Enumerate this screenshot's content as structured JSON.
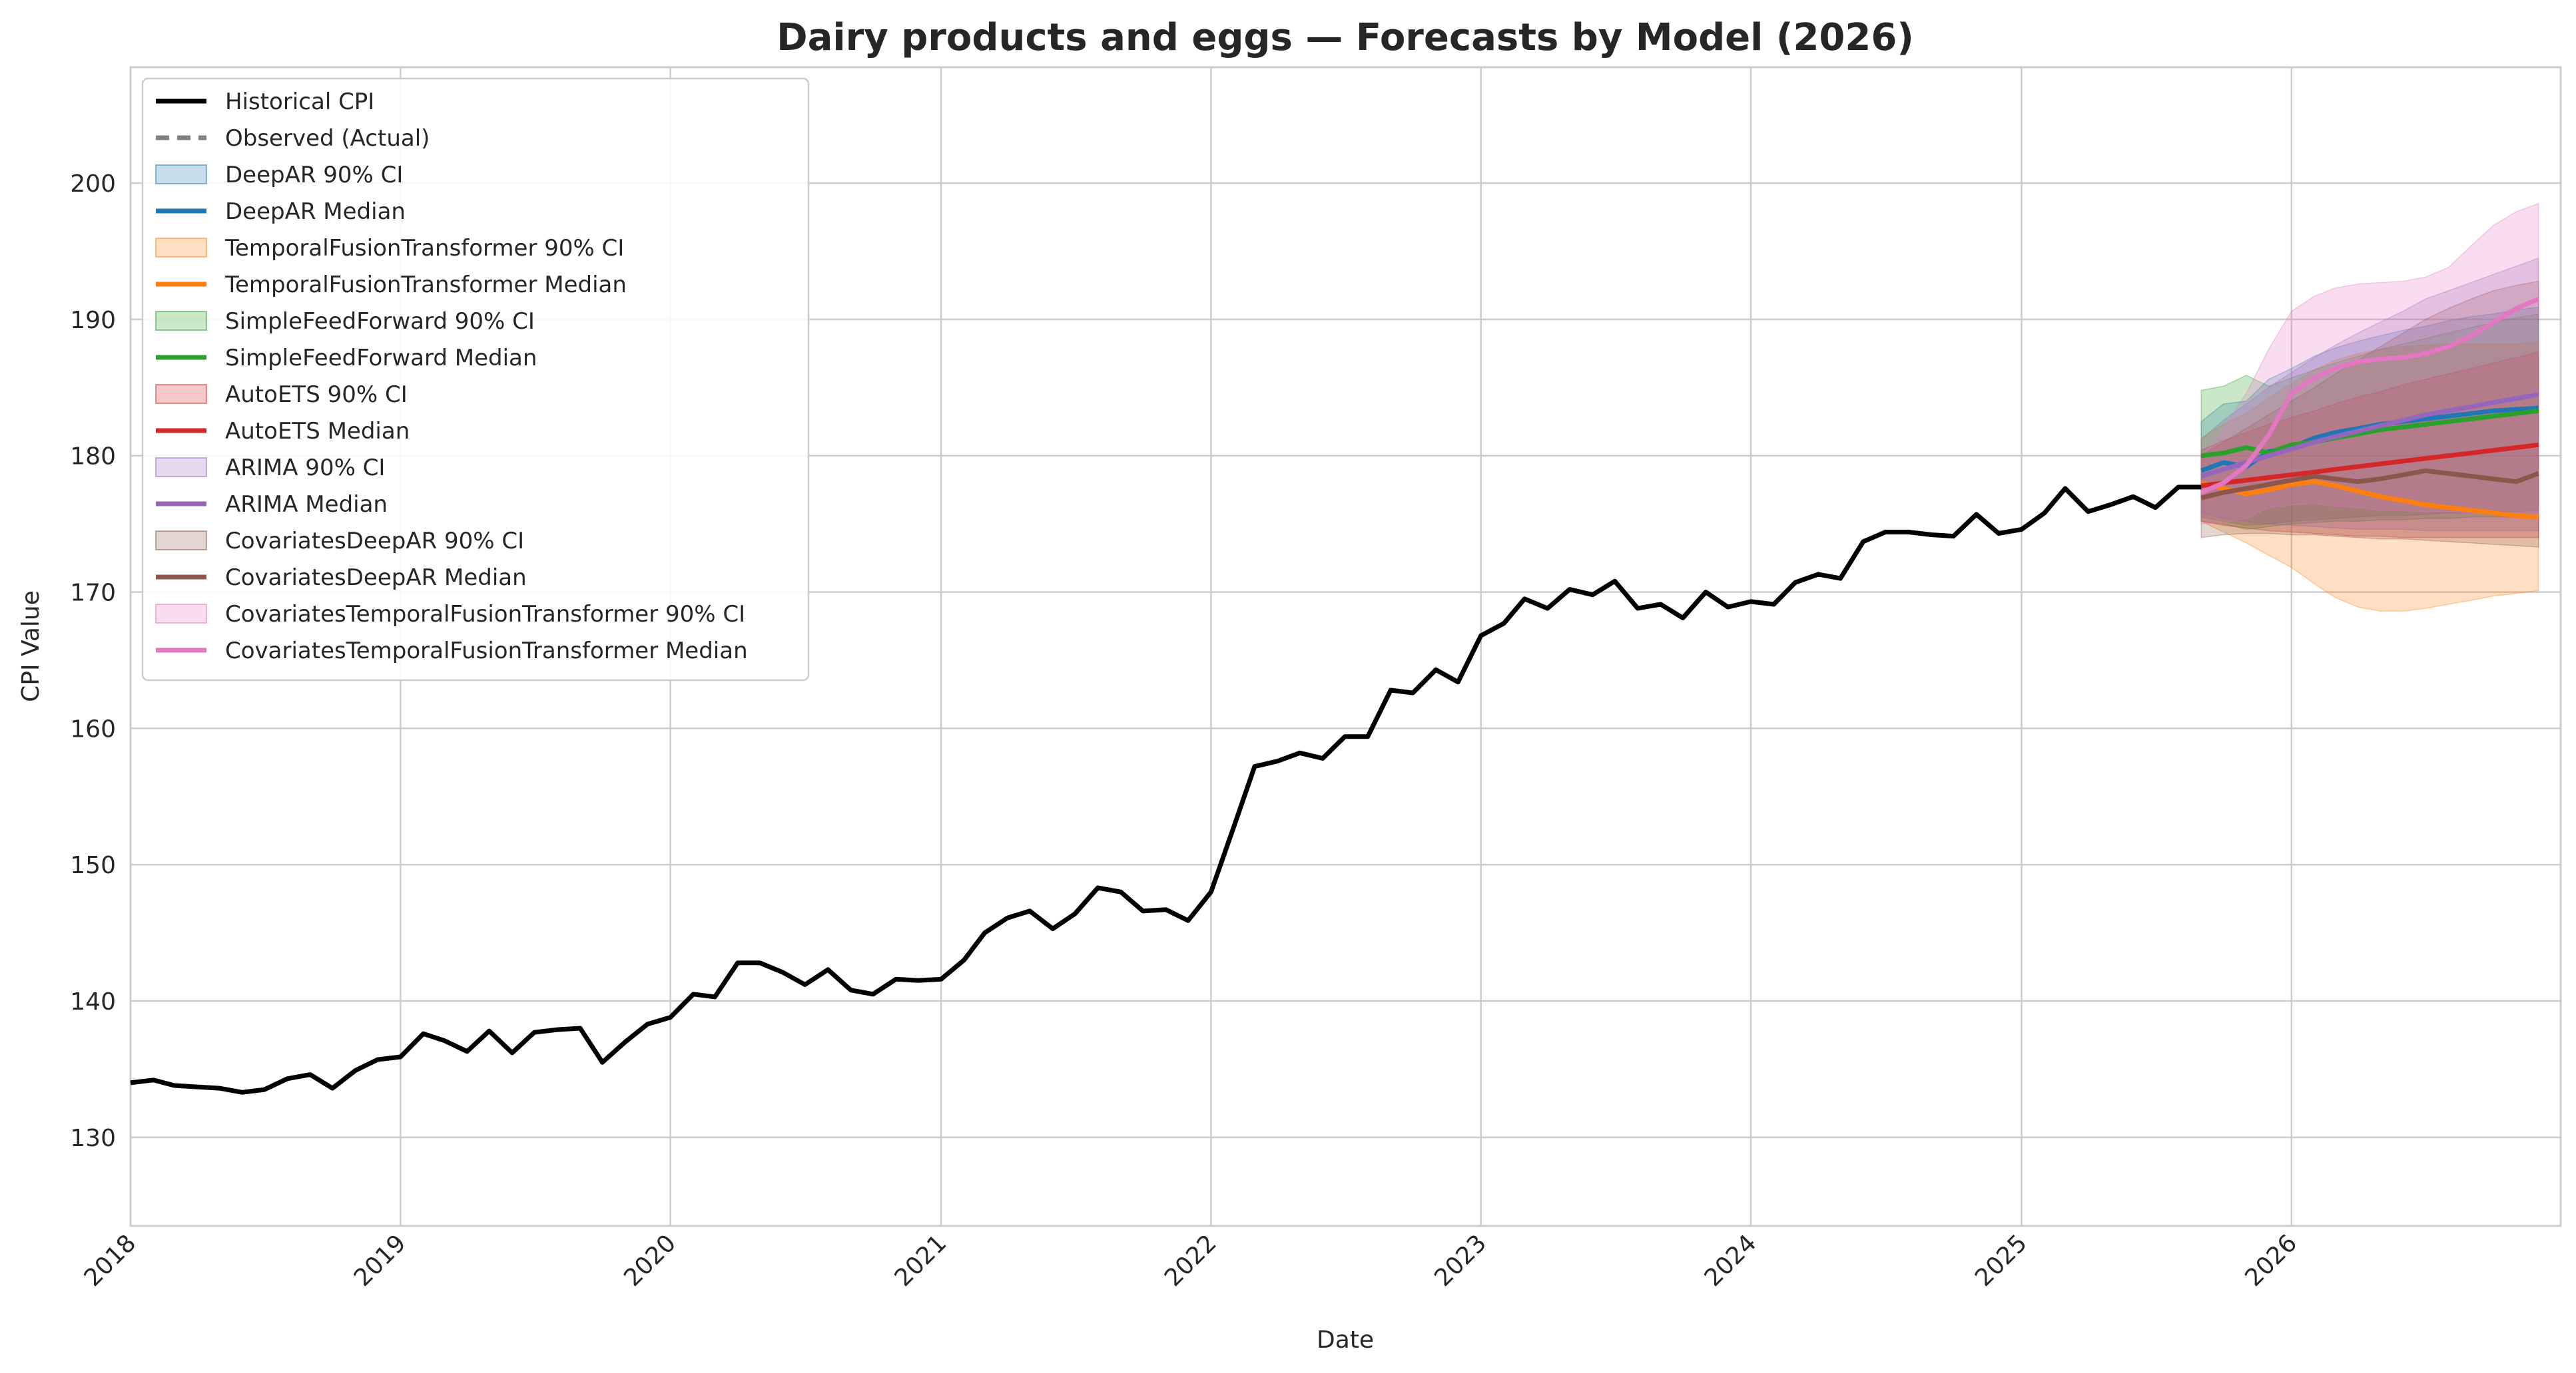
{
  "chart_data": {
    "type": "line",
    "title": "Dairy products and eggs — Forecasts by Model (2026)",
    "xlabel": "Date",
    "ylabel": "CPI Value",
    "xlim": [
      "2018-01-01",
      "2026-12-31"
    ],
    "ylim": [
      123.5,
      208.5
    ],
    "yticks": [
      130,
      140,
      150,
      160,
      170,
      180,
      190,
      200
    ],
    "xticks": [
      "2018",
      "2019",
      "2020",
      "2021",
      "2022",
      "2023",
      "2024",
      "2025",
      "2026"
    ],
    "grid": true,
    "legend_position": "top-left",
    "historical": {
      "name": "Historical CPI",
      "color": "#000000",
      "start": "2018-01",
      "values": [
        134.0,
        134.2,
        133.8,
        133.7,
        133.6,
        133.3,
        133.5,
        134.3,
        134.6,
        133.6,
        134.9,
        135.7,
        135.9,
        137.6,
        137.1,
        136.3,
        137.8,
        136.2,
        137.7,
        137.9,
        138.0,
        135.5,
        137.0,
        138.3,
        138.8,
        140.5,
        140.3,
        142.8,
        142.8,
        142.1,
        141.2,
        142.3,
        140.8,
        140.5,
        141.6,
        141.5,
        141.6,
        143.0,
        145.0,
        146.1,
        146.6,
        145.3,
        146.4,
        148.3,
        148.0,
        146.6,
        146.7,
        145.9,
        148.0,
        152.8,
        157.2,
        157.6,
        158.2,
        157.8,
        159.4,
        159.4,
        162.8,
        162.6,
        164.3,
        163.4,
        166.8,
        167.7,
        169.5,
        168.8,
        170.2,
        169.8,
        170.8,
        168.8,
        169.1,
        168.1,
        170.0,
        168.9,
        169.3,
        169.1,
        170.7,
        171.3,
        171.0,
        173.7,
        174.4,
        174.4,
        174.2,
        174.1,
        175.7,
        174.3,
        174.6,
        175.8,
        177.6,
        175.9,
        176.4,
        177.0,
        176.2,
        177.7,
        177.7
      ]
    },
    "observed": {
      "name": "Observed (Actual)",
      "color": "#808080",
      "values": []
    },
    "forecast_start": "2025-09",
    "forecast_months": 16,
    "models": [
      {
        "median_name": "DeepAR Median",
        "ci_name": "DeepAR 90% CI",
        "color": "#1f77b4",
        "median": [
          178.9,
          179.5,
          179.2,
          180.3,
          180.6,
          181.3,
          181.7,
          182.0,
          182.3,
          182.5,
          182.7,
          182.9,
          183.1,
          183.3,
          183.4,
          183.5
        ],
        "lower": [
          175.5,
          175.2,
          174.9,
          175.0,
          175.2,
          175.3,
          175.4,
          175.5,
          175.6,
          175.6,
          175.7,
          175.8,
          175.8,
          175.9,
          175.9,
          176.0
        ],
        "upper": [
          182.5,
          183.8,
          184.0,
          185.6,
          186.4,
          187.3,
          187.9,
          188.4,
          188.8,
          189.2,
          189.5,
          189.9,
          190.2,
          190.4,
          190.7,
          190.9
        ]
      },
      {
        "median_name": "TemporalFusionTransformer Median",
        "ci_name": "TemporalFusionTransformer 90% CI",
        "color": "#ff7f0e",
        "median": [
          178.0,
          177.6,
          177.2,
          177.5,
          177.9,
          178.1,
          177.8,
          177.4,
          177.0,
          176.7,
          176.4,
          176.2,
          176.0,
          175.8,
          175.6,
          175.5
        ],
        "lower": [
          175.2,
          174.4,
          173.6,
          172.7,
          171.8,
          170.6,
          169.6,
          168.9,
          168.6,
          168.6,
          168.8,
          169.1,
          169.4,
          169.7,
          169.9,
          170.1
        ],
        "upper": [
          181.3,
          182.3,
          183.1,
          184.2,
          185.3,
          186.3,
          187.0,
          187.5,
          187.8,
          188.0,
          188.1,
          188.2,
          188.2,
          188.2,
          188.2,
          188.3
        ]
      },
      {
        "median_name": "SimpleFeedForward Median",
        "ci_name": "SimpleFeedForward 90% CI",
        "color": "#2ca02c",
        "median": [
          180.0,
          180.2,
          180.6,
          180.2,
          180.8,
          181.0,
          181.3,
          181.6,
          181.9,
          182.1,
          182.3,
          182.5,
          182.7,
          182.9,
          183.1,
          183.3
        ],
        "lower": [
          175.2,
          175.0,
          174.6,
          174.8,
          175.0,
          175.1,
          175.2,
          175.2,
          175.3,
          175.3,
          175.4,
          175.4,
          175.5,
          175.5,
          175.5,
          175.6
        ],
        "upper": [
          184.8,
          185.1,
          185.9,
          185.1,
          185.7,
          186.3,
          186.8,
          187.3,
          187.8,
          188.2,
          188.6,
          189.0,
          189.4,
          189.8,
          190.1,
          190.4
        ]
      },
      {
        "median_name": "AutoETS Median",
        "ci_name": "AutoETS 90% CI",
        "color": "#d62728",
        "median": [
          177.8,
          178.0,
          178.2,
          178.4,
          178.6,
          178.8,
          179.0,
          179.2,
          179.4,
          179.6,
          179.8,
          180.0,
          180.2,
          180.4,
          180.6,
          180.8
        ],
        "lower": [
          175.2,
          174.9,
          174.7,
          174.5,
          174.4,
          174.3,
          174.2,
          174.1,
          174.1,
          174.0,
          174.0,
          174.0,
          174.0,
          174.0,
          174.0,
          174.0
        ],
        "upper": [
          180.4,
          181.1,
          181.7,
          182.3,
          182.8,
          183.3,
          183.8,
          184.3,
          184.7,
          185.2,
          185.6,
          186.0,
          186.4,
          186.8,
          187.2,
          187.6
        ]
      },
      {
        "median_name": "ARIMA Median",
        "ci_name": "ARIMA 90% CI",
        "color": "#9467bd",
        "median": [
          178.5,
          179.0,
          179.5,
          180.0,
          180.5,
          181.0,
          181.4,
          181.8,
          182.2,
          182.6,
          183.0,
          183.3,
          183.6,
          183.9,
          184.2,
          184.5
        ],
        "lower": [
          175.8,
          175.4,
          175.2,
          175.0,
          174.9,
          174.8,
          174.7,
          174.6,
          174.6,
          174.6,
          174.5,
          174.5,
          174.5,
          174.5,
          174.5,
          174.5
        ],
        "upper": [
          181.2,
          182.6,
          183.8,
          185.0,
          186.1,
          187.2,
          188.1,
          189.0,
          189.8,
          190.6,
          191.5,
          192.1,
          192.7,
          193.3,
          193.9,
          194.5
        ]
      },
      {
        "median_name": "CovariatesDeepAR Median",
        "ci_name": "CovariatesDeepAR 90% CI",
        "color": "#8c564b",
        "median": [
          176.9,
          177.3,
          177.6,
          177.9,
          178.2,
          178.5,
          178.3,
          178.1,
          178.3,
          178.6,
          178.9,
          178.7,
          178.5,
          178.3,
          178.1,
          178.7
        ],
        "lower": [
          174.0,
          174.2,
          174.3,
          174.3,
          174.2,
          174.2,
          174.1,
          174.0,
          173.9,
          173.9,
          173.8,
          173.7,
          173.6,
          173.5,
          173.4,
          173.3
        ],
        "upper": [
          180.0,
          181.0,
          182.0,
          183.0,
          184.0,
          185.0,
          186.0,
          187.0,
          188.0,
          189.0,
          190.0,
          190.8,
          191.5,
          192.1,
          192.5,
          192.8
        ]
      },
      {
        "median_name": "CovariatesTemporalFusionTransformer Median",
        "ci_name": "CovariatesTemporalFusionTransformer 90% CI",
        "color": "#e377c2",
        "median": [
          177.3,
          178.0,
          179.3,
          181.5,
          184.6,
          185.7,
          186.4,
          186.9,
          187.1,
          187.2,
          187.5,
          188.0,
          188.8,
          189.8,
          190.8,
          191.5
        ],
        "lower": [
          175.0,
          175.1,
          175.4,
          176.2,
          176.4,
          176.5,
          176.3,
          176.2,
          176.0,
          176.0,
          175.9,
          175.9,
          175.8,
          175.8,
          175.7,
          175.7
        ],
        "upper": [
          179.8,
          182.0,
          184.6,
          187.8,
          190.6,
          191.7,
          192.3,
          192.6,
          192.7,
          192.8,
          193.1,
          193.8,
          195.4,
          196.9,
          197.9,
          198.5
        ]
      }
    ]
  }
}
